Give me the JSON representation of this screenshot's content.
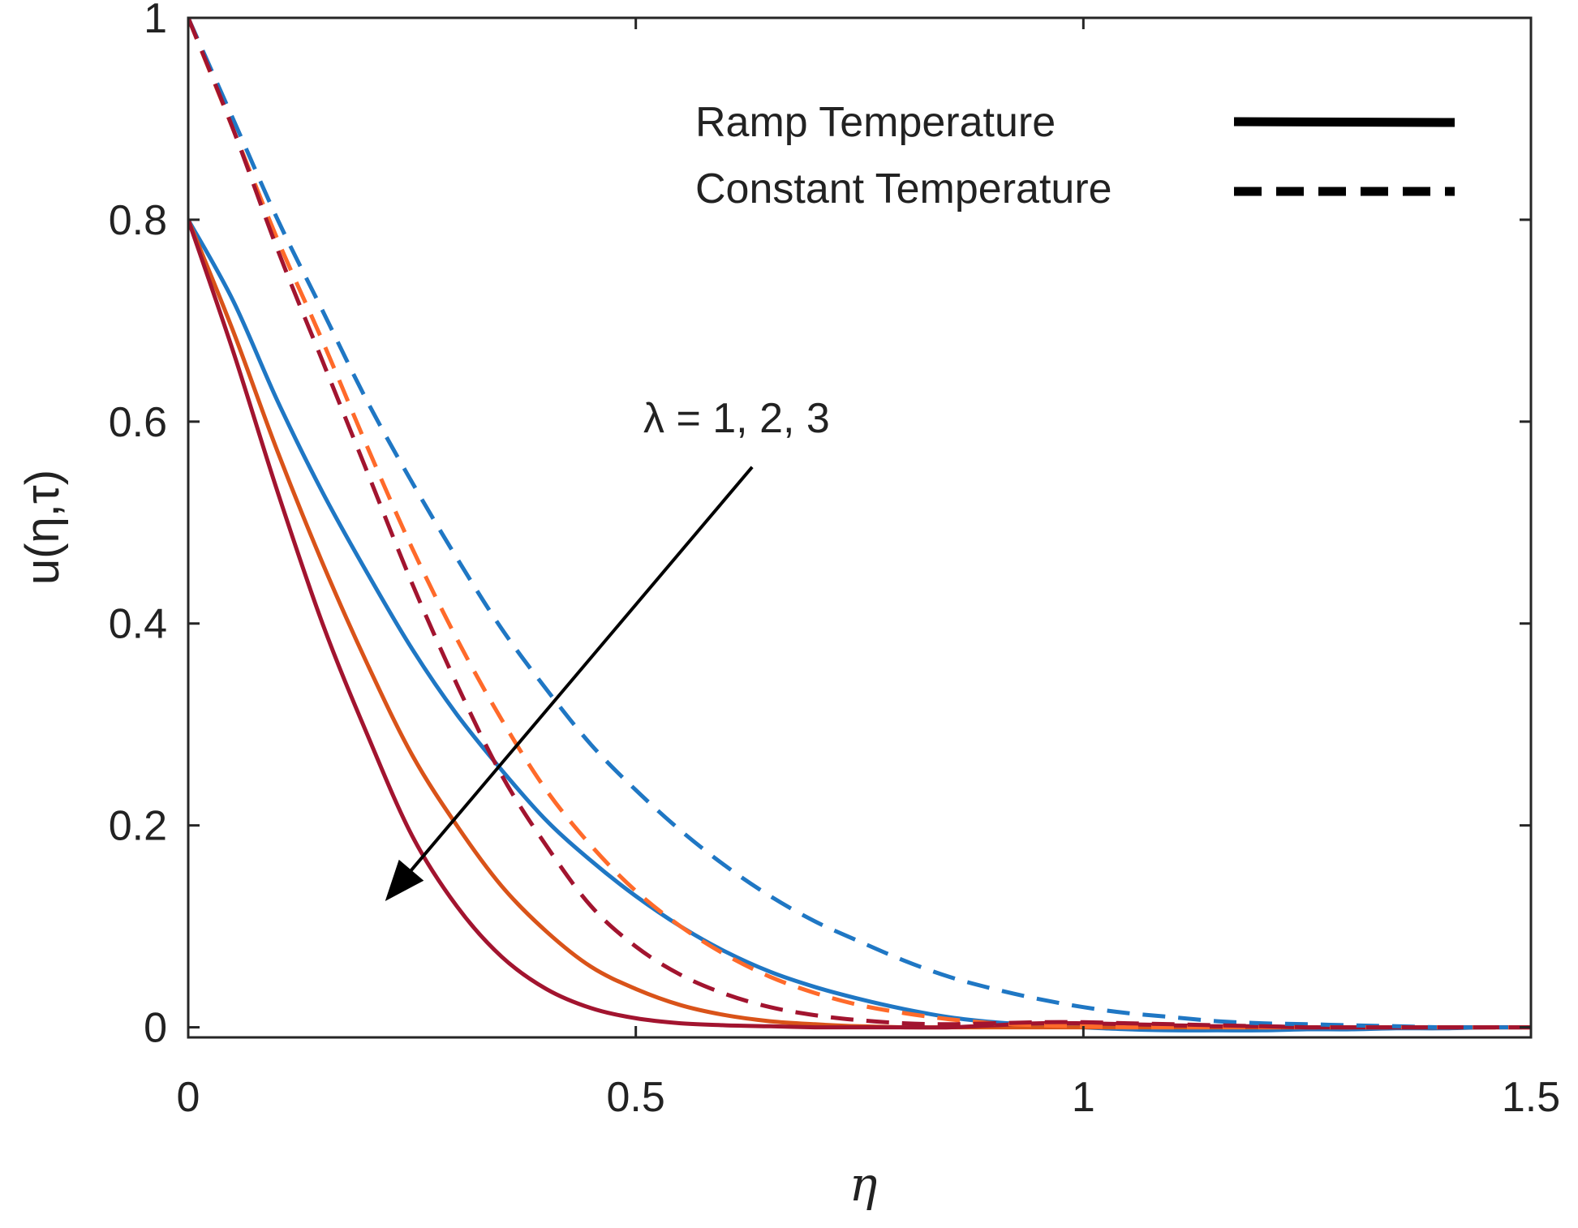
{
  "chart_data": {
    "type": "line",
    "xlabel": "η",
    "ylabel": "u(η,τ)",
    "xlim": [
      0,
      1.5
    ],
    "ylim": [
      -0.01,
      1.0
    ],
    "x_ticks": [
      0,
      0.5,
      1,
      1.5
    ],
    "x_tick_labels": [
      "0",
      "0.5",
      "1",
      "1.5"
    ],
    "y_ticks": [
      0,
      0.2,
      0.4,
      0.6,
      0.8,
      1
    ],
    "y_tick_labels": [
      "0",
      "0.2",
      "0.4",
      "0.6",
      "0.8",
      "1"
    ],
    "grid": false,
    "box": true,
    "legend": {
      "position": "top-right",
      "entries": [
        {
          "label": "Ramp Temperature",
          "style": "solid",
          "color": "#000000"
        },
        {
          "label": "Constant Temperature",
          "style": "dashed",
          "color": "#000000"
        }
      ]
    },
    "annotation": {
      "text": "λ = 1, 2, 3",
      "arrow_from": [
        0.63,
        0.555
      ],
      "arrow_to": [
        0.22,
        0.125
      ]
    },
    "x": [
      0,
      0.05,
      0.1,
      0.15,
      0.2,
      0.25,
      0.3,
      0.35,
      0.4,
      0.45,
      0.5,
      0.55,
      0.6,
      0.65,
      0.7,
      0.75,
      0.8,
      0.85,
      0.9,
      0.95,
      1.0,
      1.05,
      1.1,
      1.15,
      1.2,
      1.25,
      1.3,
      1.35,
      1.4,
      1.45,
      1.5
    ],
    "series": [
      {
        "name": "Ramp Temperature, λ = 1",
        "style": "solid",
        "color": "#1f77c4",
        "values": [
          0.8,
          0.72,
          0.62,
          0.53,
          0.45,
          0.375,
          0.31,
          0.255,
          0.205,
          0.165,
          0.13,
          0.1,
          0.075,
          0.055,
          0.04,
          0.028,
          0.018,
          0.01,
          0.005,
          0.002,
          0.0,
          -0.002,
          -0.003,
          -0.003,
          -0.003,
          -0.002,
          -0.002,
          -0.001,
          -0.001,
          0.0,
          0.0
        ]
      },
      {
        "name": "Ramp Temperature, λ = 2",
        "style": "solid",
        "color": "#d95319",
        "values": [
          0.8,
          0.69,
          0.57,
          0.46,
          0.36,
          0.27,
          0.2,
          0.14,
          0.095,
          0.06,
          0.038,
          0.022,
          0.012,
          0.006,
          0.003,
          0.001,
          0.0,
          0.0,
          0.0,
          0.0,
          0.0,
          0.0,
          0.0,
          0.0,
          0.0,
          0.0,
          0.0,
          0.0,
          0.0,
          0.0,
          0.0
        ]
      },
      {
        "name": "Ramp Temperature, λ = 3",
        "style": "solid",
        "color": "#a2142f",
        "values": [
          0.8,
          0.67,
          0.53,
          0.4,
          0.29,
          0.19,
          0.12,
          0.07,
          0.038,
          0.019,
          0.009,
          0.004,
          0.002,
          0.001,
          0.0,
          0.0,
          0.0,
          0.0,
          0.002,
          0.004,
          0.004,
          0.003,
          0.002,
          0.001,
          0.001,
          0.0,
          0.0,
          0.0,
          0.0,
          0.0,
          0.0
        ]
      },
      {
        "name": "Constant Temperature, λ = 1",
        "style": "dashed",
        "color": "#1f77c4",
        "values": [
          1.0,
          0.9,
          0.8,
          0.71,
          0.62,
          0.54,
          0.465,
          0.395,
          0.335,
          0.28,
          0.235,
          0.195,
          0.16,
          0.13,
          0.105,
          0.085,
          0.066,
          0.05,
          0.038,
          0.028,
          0.02,
          0.014,
          0.01,
          0.006,
          0.004,
          0.003,
          0.002,
          0.001,
          0.0,
          0.0,
          0.0
        ]
      },
      {
        "name": "Constant Temperature, λ = 2",
        "style": "dashed",
        "color": "#ff6a2a",
        "values": [
          1.0,
          0.89,
          0.78,
          0.68,
          0.575,
          0.475,
          0.385,
          0.305,
          0.235,
          0.18,
          0.135,
          0.1,
          0.072,
          0.05,
          0.034,
          0.022,
          0.014,
          0.008,
          0.004,
          0.002,
          0.001,
          0.0,
          0.0,
          0.0,
          0.0,
          0.0,
          0.0,
          0.0,
          0.0,
          0.0,
          0.0
        ]
      },
      {
        "name": "Constant Temperature, λ = 3",
        "style": "dashed",
        "color": "#a2142f",
        "values": [
          1.0,
          0.89,
          0.77,
          0.66,
          0.55,
          0.44,
          0.34,
          0.25,
          0.18,
          0.12,
          0.08,
          0.052,
          0.033,
          0.02,
          0.012,
          0.007,
          0.004,
          0.003,
          0.004,
          0.005,
          0.005,
          0.004,
          0.003,
          0.002,
          0.001,
          0.0,
          0.0,
          0.0,
          0.0,
          0.0,
          0.0
        ]
      }
    ]
  }
}
